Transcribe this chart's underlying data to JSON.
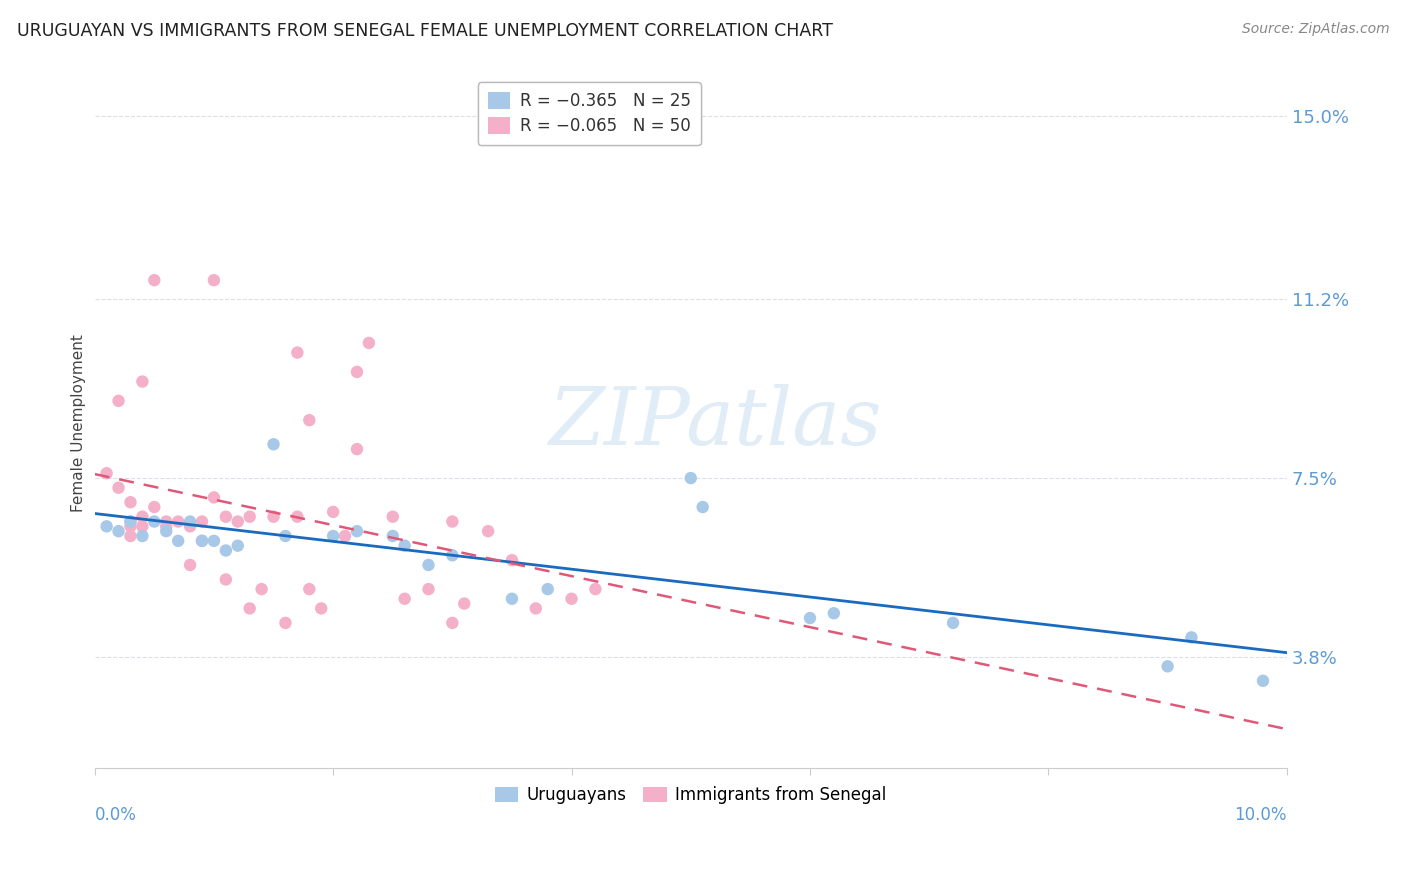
{
  "title": "URUGUAYAN VS IMMIGRANTS FROM SENEGAL FEMALE UNEMPLOYMENT CORRELATION CHART",
  "source": "Source: ZipAtlas.com",
  "ylabel": "Female Unemployment",
  "yticks": [
    0.038,
    0.075,
    0.112,
    0.15
  ],
  "ytick_labels": [
    "3.8%",
    "7.5%",
    "11.2%",
    "15.0%"
  ],
  "xlim": [
    0.0,
    0.1
  ],
  "ylim": [
    0.015,
    0.158
  ],
  "blue_scatter": [
    [
      0.001,
      0.065
    ],
    [
      0.002,
      0.064
    ],
    [
      0.003,
      0.066
    ],
    [
      0.004,
      0.063
    ],
    [
      0.005,
      0.066
    ],
    [
      0.006,
      0.064
    ],
    [
      0.007,
      0.062
    ],
    [
      0.008,
      0.066
    ],
    [
      0.009,
      0.062
    ],
    [
      0.01,
      0.062
    ],
    [
      0.011,
      0.06
    ],
    [
      0.012,
      0.061
    ],
    [
      0.015,
      0.082
    ],
    [
      0.016,
      0.063
    ],
    [
      0.02,
      0.063
    ],
    [
      0.022,
      0.064
    ],
    [
      0.025,
      0.063
    ],
    [
      0.026,
      0.061
    ],
    [
      0.028,
      0.057
    ],
    [
      0.03,
      0.059
    ],
    [
      0.035,
      0.05
    ],
    [
      0.038,
      0.052
    ],
    [
      0.05,
      0.075
    ],
    [
      0.051,
      0.069
    ],
    [
      0.06,
      0.046
    ],
    [
      0.062,
      0.047
    ],
    [
      0.072,
      0.045
    ],
    [
      0.09,
      0.036
    ],
    [
      0.092,
      0.042
    ],
    [
      0.098,
      0.033
    ]
  ],
  "pink_scatter": [
    [
      0.001,
      0.076
    ],
    [
      0.002,
      0.091
    ],
    [
      0.002,
      0.073
    ],
    [
      0.003,
      0.066
    ],
    [
      0.003,
      0.065
    ],
    [
      0.003,
      0.063
    ],
    [
      0.003,
      0.07
    ],
    [
      0.004,
      0.095
    ],
    [
      0.004,
      0.067
    ],
    [
      0.004,
      0.065
    ],
    [
      0.005,
      0.069
    ],
    [
      0.005,
      0.116
    ],
    [
      0.006,
      0.065
    ],
    [
      0.006,
      0.066
    ],
    [
      0.007,
      0.066
    ],
    [
      0.008,
      0.057
    ],
    [
      0.008,
      0.065
    ],
    [
      0.009,
      0.062
    ],
    [
      0.009,
      0.066
    ],
    [
      0.01,
      0.116
    ],
    [
      0.01,
      0.071
    ],
    [
      0.011,
      0.054
    ],
    [
      0.011,
      0.067
    ],
    [
      0.012,
      0.066
    ],
    [
      0.013,
      0.048
    ],
    [
      0.013,
      0.067
    ],
    [
      0.014,
      0.052
    ],
    [
      0.015,
      0.067
    ],
    [
      0.016,
      0.045
    ],
    [
      0.017,
      0.067
    ],
    [
      0.017,
      0.101
    ],
    [
      0.018,
      0.087
    ],
    [
      0.018,
      0.052
    ],
    [
      0.019,
      0.048
    ],
    [
      0.02,
      0.068
    ],
    [
      0.021,
      0.063
    ],
    [
      0.022,
      0.097
    ],
    [
      0.022,
      0.081
    ],
    [
      0.023,
      0.103
    ],
    [
      0.025,
      0.067
    ],
    [
      0.026,
      0.05
    ],
    [
      0.028,
      0.052
    ],
    [
      0.03,
      0.066
    ],
    [
      0.03,
      0.045
    ],
    [
      0.031,
      0.049
    ],
    [
      0.033,
      0.064
    ],
    [
      0.035,
      0.058
    ],
    [
      0.037,
      0.048
    ],
    [
      0.04,
      0.05
    ],
    [
      0.042,
      0.052
    ]
  ],
  "watermark_text": "ZIPatlas",
  "blue_color": "#a8c8e8",
  "pink_color": "#f4b0c8",
  "blue_scatter_edge": "none",
  "pink_scatter_edge": "none",
  "blue_line_color": "#1a6bbf",
  "pink_line_color": "#e05878",
  "background_color": "#ffffff",
  "grid_color": "#ddddee",
  "title_color": "#222222",
  "source_color": "#888888",
  "ylabel_color": "#444444",
  "right_tick_color": "#5b9bd5",
  "bottom_tick_color": "#5b9bd5",
  "legend_edge_color": "#bbbbbb",
  "scatter_size": 80
}
